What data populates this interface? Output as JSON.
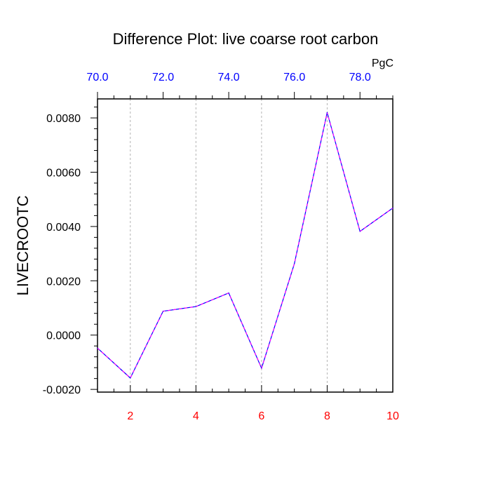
{
  "chart_data": {
    "type": "line",
    "title": "Difference Plot: live coarse root carbon",
    "ylabel": "LIVECROOTC",
    "xlabel": "",
    "units_label": "PgC",
    "x": [
      1,
      2,
      3,
      4,
      5,
      6,
      7,
      8,
      9,
      10
    ],
    "series": [
      {
        "values": [
          -0.00048,
          -0.00158,
          0.00088,
          0.00105,
          0.00155,
          -0.00122,
          0.00263,
          0.0082,
          0.00382,
          0.00468
        ]
      }
    ],
    "xlim": [
      1,
      10
    ],
    "ylim": [
      -0.0021,
      0.0087
    ],
    "x_ticks": [
      2,
      4,
      6,
      8,
      10
    ],
    "x_tick_labels": [
      "2",
      "4",
      "6",
      "8",
      "10"
    ],
    "y_ticks": [
      -0.002,
      0.0,
      0.002,
      0.004,
      0.006,
      0.008
    ],
    "y_tick_labels": [
      "-0.0020",
      "0.0000",
      "0.0020",
      "0.0040",
      "0.0060",
      "0.0080"
    ],
    "top_axis": {
      "xlim": [
        70.0,
        79.0
      ],
      "ticks": [
        70,
        72,
        74,
        76,
        78
      ],
      "tick_labels": [
        "70.0",
        "72.0",
        "74.0",
        "76.0",
        "78.0"
      ]
    },
    "grid": "vertical dashed at bottom axis ticks",
    "legend": "none"
  },
  "colors": {
    "bottom_tick_labels": "#ff0000",
    "top_tick_labels": "#0000ff",
    "line_primary": "#0000ff",
    "line_dash": "#ff00ff",
    "grid": "#b4b4b4",
    "axis": "#000000"
  }
}
